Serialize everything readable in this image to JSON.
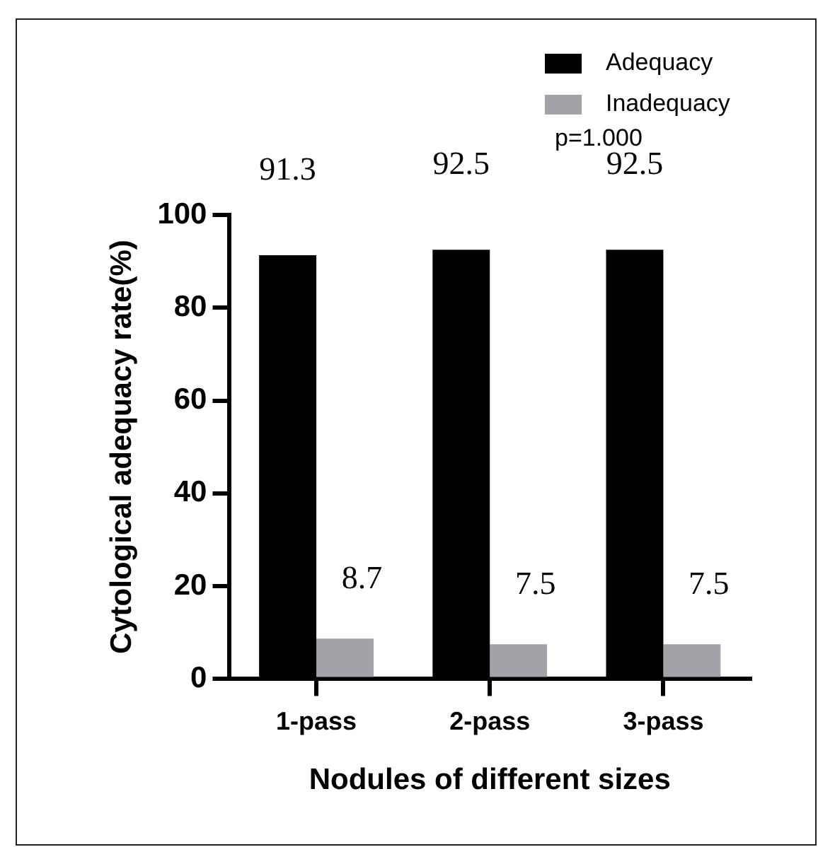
{
  "chart_data": {
    "type": "bar",
    "xlabel": "Nodules of different sizes",
    "ylabel": "Cytological adequacy rate(%)",
    "categories": [
      "1-pass",
      "2-pass",
      "3-pass"
    ],
    "series": [
      {
        "name": "Adequacy",
        "color": "#000000",
        "values": [
          91.3,
          92.5,
          92.5
        ]
      },
      {
        "name": "Inadequacy",
        "color": "#a2a2a8",
        "values": [
          8.7,
          7.5,
          7.5
        ]
      }
    ],
    "ylim": [
      0,
      100
    ],
    "yticks": [
      0,
      20,
      40,
      60,
      80,
      100
    ],
    "data_labels": true,
    "grid": false,
    "legend": "top right",
    "annotations": [
      "p=1.000"
    ]
  }
}
